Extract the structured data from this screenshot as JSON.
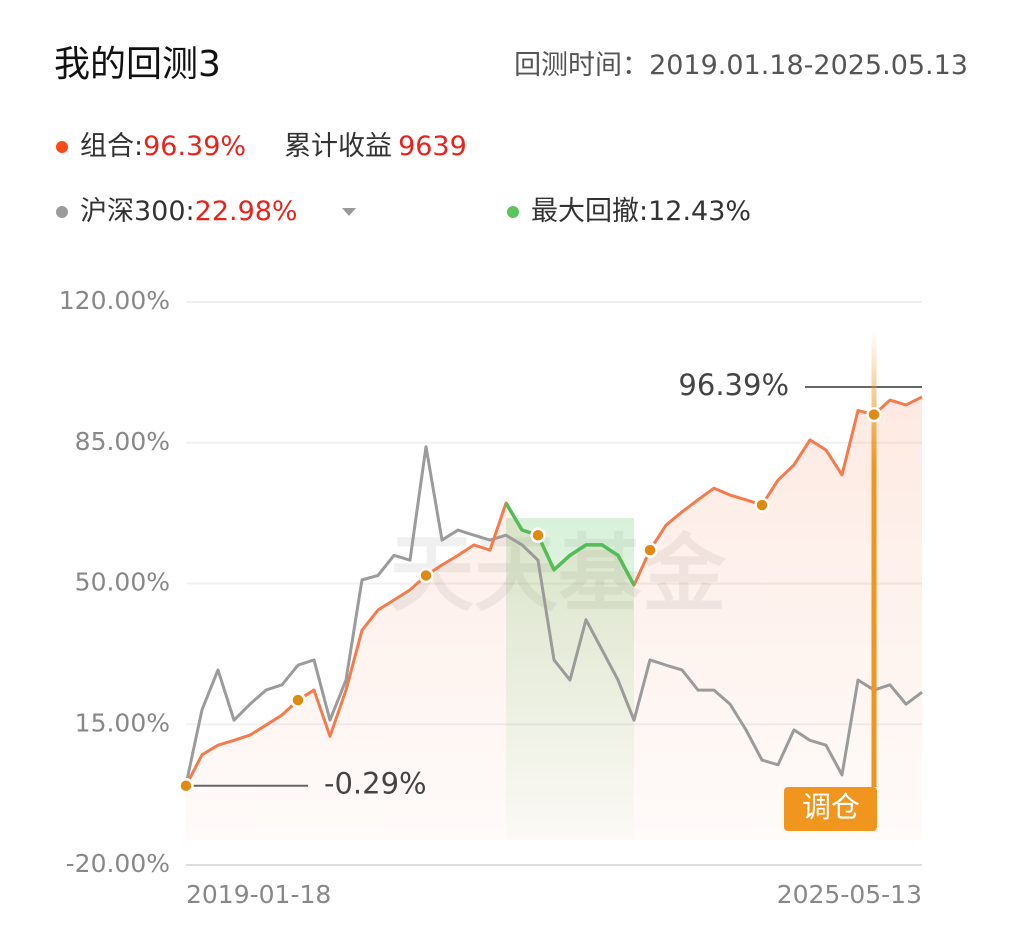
{
  "header": {
    "title": "我的回测3",
    "period_label": "回测时间：",
    "period": "2019.01.18-2025.05.13"
  },
  "summary": {
    "portfolio_return": "96.39%",
    "cumulative_label": "累计收益",
    "cumulative_value": "9639",
    "benchmark_return": "22.98%",
    "drawdown_label": "最大回撤:",
    "drawdown_value": "12.43%"
  },
  "watermark": "天天基金",
  "chart_data": {
    "type": "line",
    "categories": [
      "2019-01-18",
      null,
      null,
      null,
      null,
      null,
      null,
      null,
      null,
      null,
      null,
      null,
      null,
      null,
      null,
      null,
      null,
      null,
      null,
      null,
      null,
      null,
      null,
      null,
      null,
      null,
      null,
      null,
      null,
      null,
      null,
      null,
      null,
      null,
      null,
      null,
      null,
      null,
      null,
      null,
      null,
      null,
      null,
      null,
      null,
      null,
      "2025-05-13"
    ],
    "series": [
      {
        "name": "组合:",
        "color": "#f57a4c",
        "values": [
          -0.29,
          7.4,
          9.8,
          11,
          12.3,
          14.8,
          17.3,
          21,
          23.5,
          12,
          23.5,
          38.4,
          43.4,
          45.9,
          48.4,
          52,
          54.6,
          57,
          59.6,
          58.3,
          70,
          63.3,
          62,
          53.4,
          57,
          59.6,
          59.6,
          57,
          49.6,
          58.3,
          64.5,
          67.8,
          70.8,
          73.7,
          72,
          70.8,
          69.5,
          75.7,
          79.5,
          85.7,
          83.2,
          77,
          93,
          92,
          95.6,
          94.4,
          96.39
        ],
        "value_labels": [
          "-0.29%",
          null,
          null,
          null,
          null,
          null,
          null,
          null,
          null,
          null,
          null,
          null,
          null,
          null,
          null,
          null,
          null,
          null,
          null,
          null,
          null,
          null,
          null,
          null,
          null,
          null,
          null,
          null,
          null,
          null,
          null,
          null,
          null,
          null,
          null,
          null,
          null,
          null,
          null,
          null,
          null,
          null,
          null,
          null,
          null,
          null,
          "96.39%"
        ]
      },
      {
        "name": "沪深300:",
        "color": "#9b9b9b",
        "values": [
          0,
          18.6,
          28.5,
          16,
          20,
          23.5,
          24.8,
          29.7,
          31,
          16,
          26,
          50.9,
          52,
          57,
          55.8,
          84,
          60.8,
          63.3,
          62,
          60.8,
          62,
          59.6,
          55.8,
          31,
          26,
          41,
          33.5,
          26,
          16,
          31,
          29.7,
          28.5,
          23.5,
          23.5,
          20,
          13.6,
          6.1,
          4.9,
          13.6,
          11,
          9.8,
          2.4,
          26,
          23.5,
          24.8,
          20,
          22.98
        ]
      }
    ],
    "drawdown_color": "#52be55",
    "rebalance": {
      "label": "调仓",
      "color": "#f0961e",
      "at": [
        0,
        7,
        15,
        22,
        29,
        36,
        43
      ]
    },
    "ylim": [
      -20,
      120
    ],
    "yticks": [
      {
        "value": -20,
        "label": "-20.00%"
      },
      {
        "value": 15,
        "label": "15.00%"
      },
      {
        "value": 50,
        "label": "50.00%"
      },
      {
        "value": 85,
        "label": "85.00%"
      },
      {
        "value": 120,
        "label": "120.00%"
      }
    ],
    "grid": true
  }
}
